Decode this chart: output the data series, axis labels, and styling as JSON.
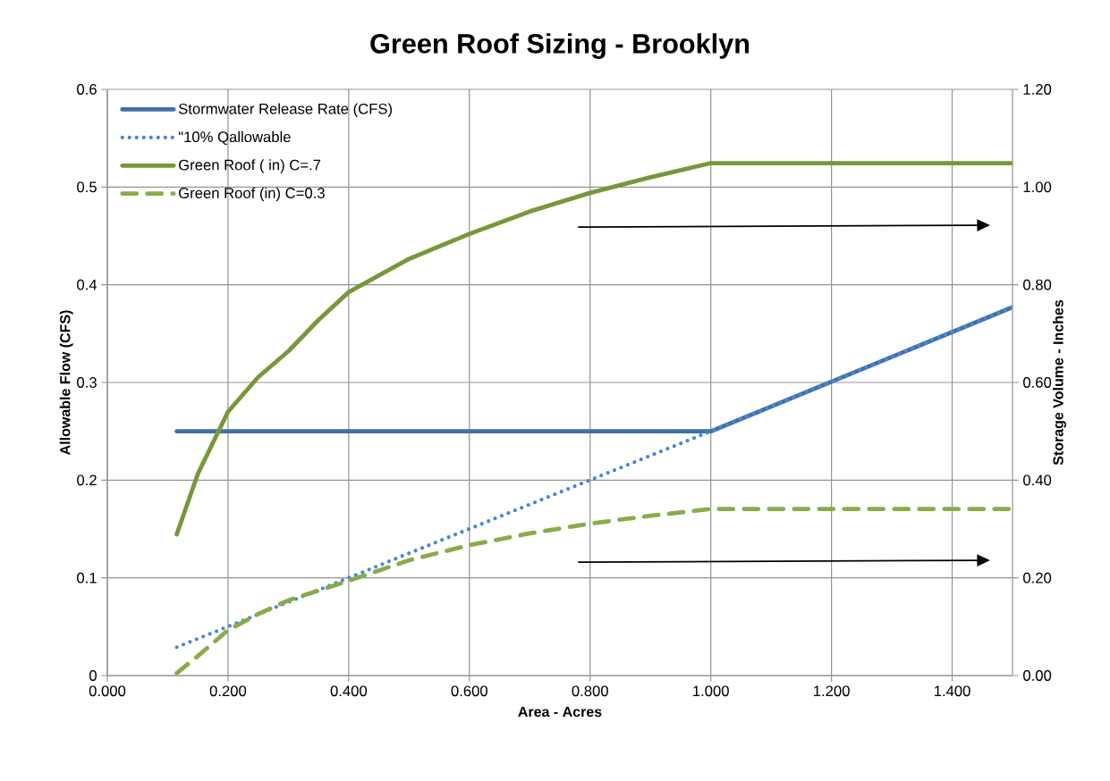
{
  "chart_data": {
    "type": "line",
    "title": "Green Roof Sizing - Brooklyn",
    "xlabel": "Area - Acres",
    "ylabel": "Allowable Flow (CFS)",
    "y2label": "Storage Volume - Inches",
    "series": [
      {
        "name": "Stormwater  Release Rate (CFS)",
        "color": "#4170a8",
        "line_style": "solid",
        "x": [
          0.115,
          1.0,
          1.5
        ],
        "values": [
          0.25,
          0.25,
          0.377
        ]
      },
      {
        "name": "\"10% Qallowable",
        "color": "#4a86d8",
        "line_style": "dotted",
        "x": [
          0.115,
          1.0,
          1.5
        ],
        "values": [
          0.029,
          0.25,
          0.377
        ]
      },
      {
        "name": "Green Roof ( in) C=.7",
        "color": "#76983a",
        "line_style": "solid",
        "axis": "y2",
        "x": [
          0.115,
          0.15,
          0.2,
          0.25,
          0.3,
          0.35,
          0.4,
          0.5,
          0.6,
          0.7,
          0.8,
          0.9,
          1.0,
          1.5
        ],
        "values": [
          0.289,
          0.413,
          0.54,
          0.611,
          0.664,
          0.728,
          0.785,
          0.853,
          0.904,
          0.95,
          0.988,
          1.02,
          1.049,
          1.049
        ]
      },
      {
        "name": "Green Roof (in) C=0.3",
        "color": "#8aab4a",
        "line_style": "dashed",
        "axis": "y2",
        "x": [
          0.115,
          0.15,
          0.2,
          0.25,
          0.3,
          0.4,
          0.5,
          0.6,
          0.7,
          0.8,
          0.9,
          1.0,
          1.5
        ],
        "values": [
          0.005,
          0.04,
          0.093,
          0.126,
          0.154,
          0.194,
          0.236,
          0.267,
          0.291,
          0.311,
          0.327,
          0.341,
          0.341
        ]
      }
    ],
    "xlim": [
      0,
      1.5
    ],
    "ylim": [
      0,
      0.6
    ],
    "y2lim": [
      0,
      1.2
    ],
    "xticks": [
      {
        "value": 0,
        "label": "0.000"
      },
      {
        "value": 0.2,
        "label": "0.200"
      },
      {
        "value": 0.4,
        "label": "0.400"
      },
      {
        "value": 0.6,
        "label": "0.600"
      },
      {
        "value": 0.8,
        "label": "0.800"
      },
      {
        "value": 1.0,
        "label": "1.000"
      },
      {
        "value": 1.2,
        "label": "1.200"
      },
      {
        "value": 1.4,
        "label": "1.400"
      }
    ],
    "yticks": [
      0,
      0.1,
      0.2,
      0.3,
      0.4,
      0.5,
      0.6
    ],
    "y2ticks": [
      {
        "value": 0,
        "label": "0.00"
      },
      {
        "value": 0.2,
        "label": "0.20"
      },
      {
        "value": 0.4,
        "label": "0.40"
      },
      {
        "value": 0.6,
        "label": "0.60"
      },
      {
        "value": 0.8,
        "label": "0.80"
      },
      {
        "value": 1.0,
        "label": "1.00"
      },
      {
        "value": 1.2,
        "label": "1.20"
      }
    ],
    "grid": true,
    "legend": "top left",
    "marker": "none"
  }
}
